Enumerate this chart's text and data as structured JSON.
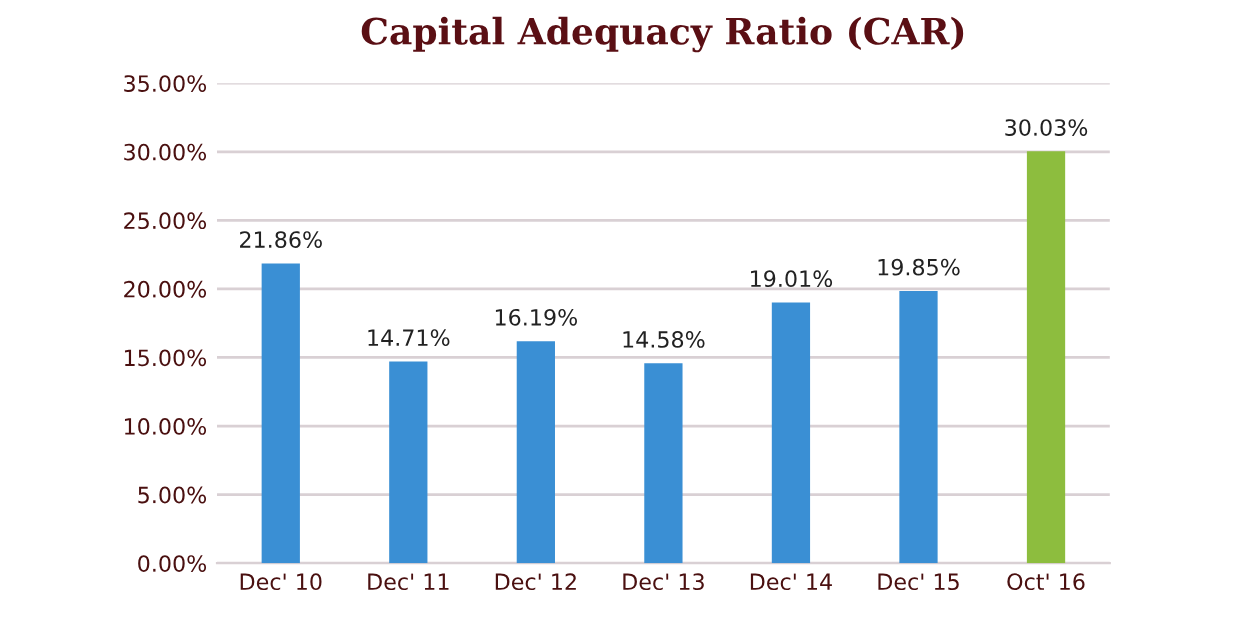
{
  "chart_data": {
    "type": "bar",
    "title": "Capital Adequacy Ratio (CAR)",
    "categories": [
      "Dec' 10",
      "Dec' 11",
      "Dec' 12",
      "Dec' 13",
      "Dec' 14",
      "Dec' 15",
      "Oct' 16"
    ],
    "values": [
      21.86,
      14.71,
      16.19,
      14.58,
      19.01,
      19.85,
      30.03
    ],
    "colors": [
      "#3a8fd4",
      "#3a8fd4",
      "#3a8fd4",
      "#3a8fd4",
      "#3a8fd4",
      "#3a8fd4",
      "#8dbd3e"
    ],
    "value_labels": [
      "21.86%",
      "14.71%",
      "16.19%",
      "14.58%",
      "19.01%",
      "19.85%",
      "30.03%"
    ],
    "ylim": [
      0,
      35
    ],
    "yticks": [
      {
        "value": 0,
        "label": "0.00%"
      },
      {
        "value": 5,
        "label": "5.00%"
      },
      {
        "value": 10,
        "label": "10.00%"
      },
      {
        "value": 15,
        "label": "15.00%"
      },
      {
        "value": 20,
        "label": "20.00%"
      },
      {
        "value": 25,
        "label": "25.00%"
      },
      {
        "value": 30,
        "label": "30.00%"
      },
      {
        "value": 35,
        "label": "35.00%"
      }
    ],
    "grid": "y",
    "legend": false
  }
}
